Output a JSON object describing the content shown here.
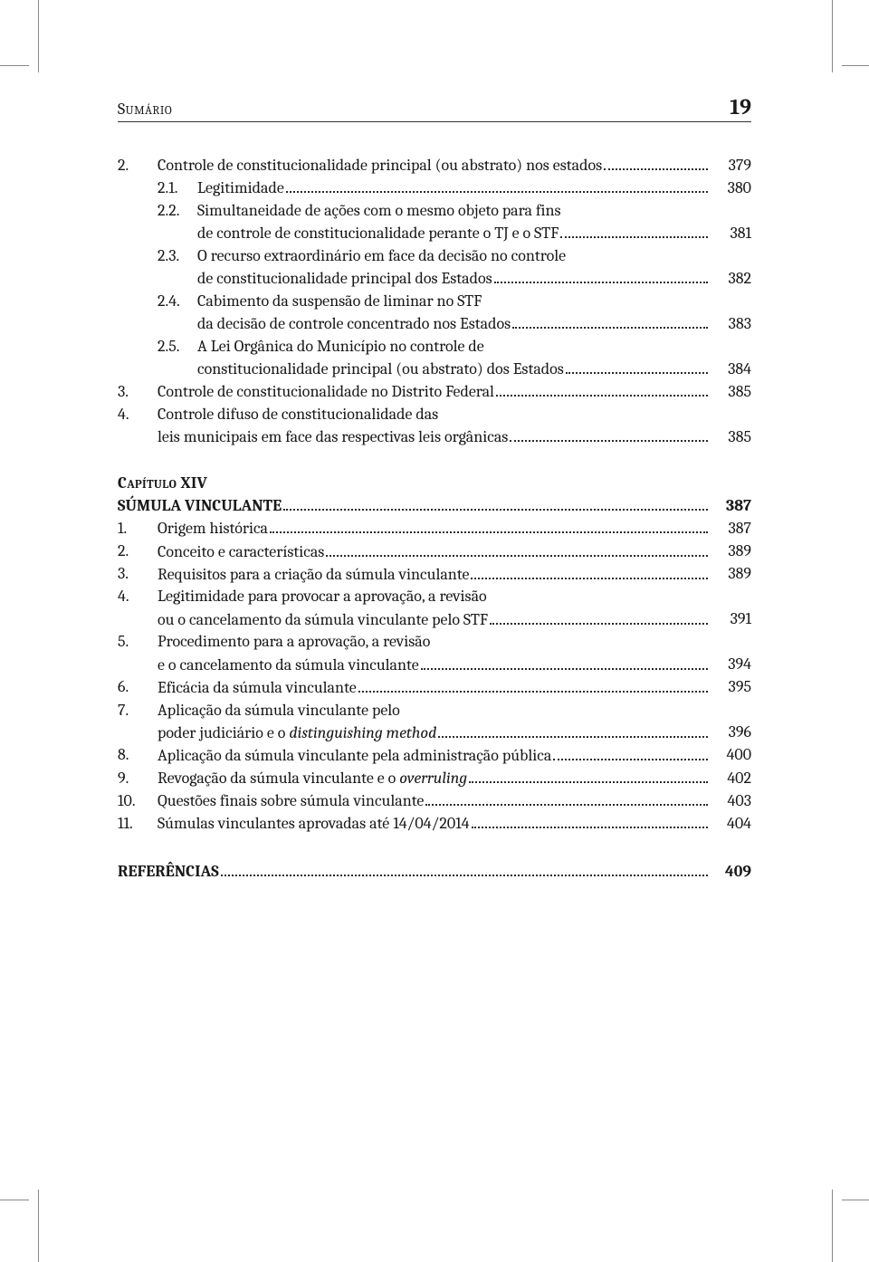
{
  "header": {
    "left": "Sumário",
    "page_number": "19"
  },
  "section_a": {
    "items": [
      {
        "num": "2.",
        "text": "Controle de constitucionalidade principal (ou abstrato) nos estados",
        "page": "379"
      },
      {
        "sub": "2.1.",
        "text": "Legitimidade",
        "page": "380"
      },
      {
        "sub": "2.2.",
        "text": "Simultaneidade de ações com o mesmo objeto para fins",
        "cont": "de controle de constitucionalidade perante o TJ e o STF ",
        "page": "381"
      },
      {
        "sub": "2.3.",
        "text": "O recurso extraordinário em face da decisão no controle",
        "cont": "de constitucionalidade principal dos Estados ",
        "page": "382"
      },
      {
        "sub": "2.4.",
        "text": "Cabimento da suspensão de liminar no STF",
        "cont": "da decisão de controle concentrado nos Estados",
        "page": "383"
      },
      {
        "sub": "2.5.",
        "text": "A Lei Orgânica do Município no controle de",
        "cont": "constitucionalidade principal (ou abstrato) dos Estados ",
        "page": "384"
      },
      {
        "num": "3.",
        "text": "Controle de constitucionalidade no Distrito Federal",
        "page": "385"
      },
      {
        "num": "4.",
        "text": "Controle difuso de constitucionalidade das",
        "cont_at_main": "leis municipais em face das respectivas leis orgânicas",
        "page": "385"
      }
    ]
  },
  "chapter": {
    "label": "Capítulo XIV",
    "title": "SÚMULA VINCULANTE",
    "page": "387"
  },
  "section_b": {
    "items": [
      {
        "num": "1.",
        "text": "Origem histórica",
        "page": "387"
      },
      {
        "num": "2.",
        "text": "Conceito e características",
        "page": "389"
      },
      {
        "num": "3.",
        "text": "Requisitos para a criação da súmula vinculante",
        "page": "389"
      },
      {
        "num": "4.",
        "text": "Legitimidade para provocar a aprovação, a revisão",
        "cont_at_main": "ou o cancelamento da súmula vinculante pelo STF",
        "page": "391"
      },
      {
        "num": "5.",
        "text": "Procedimento para a aprovação, a revisão",
        "cont_at_main": "e o cancelamento da súmula vinculante",
        "page": "394"
      },
      {
        "num": "6.",
        "text": "Eficácia da súmula vinculante",
        "page": "395"
      },
      {
        "num": "7.",
        "text": "Aplicação da súmula vinculante pelo",
        "cont_at_main_parts": [
          "poder judiciário e o ",
          "distinguishing method"
        ],
        "page": "396"
      },
      {
        "num": "8.",
        "text": "Aplicação da súmula vinculante pela administração pública ",
        "page": "400"
      },
      {
        "num": "9.",
        "parts": [
          "Revogação da súmula vinculante e o ",
          "overruling"
        ],
        "page": "402"
      },
      {
        "num": "10.",
        "text": "Questões finais sobre súmula vinculante",
        "page": "403"
      },
      {
        "num": "11.",
        "text": "Súmulas vinculantes aprovadas até 14/04/2014",
        "page": "404"
      }
    ]
  },
  "references": {
    "label": "REFERÊNCIAS",
    "page": "409"
  }
}
